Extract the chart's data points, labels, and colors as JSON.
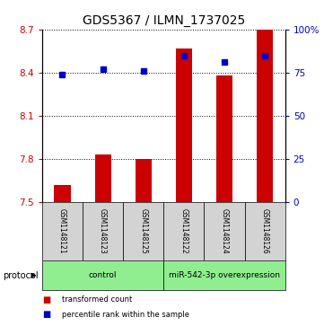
{
  "title": "GDS5367 / ILMN_1737025",
  "samples": [
    "GSM1148121",
    "GSM1148123",
    "GSM1148125",
    "GSM1148122",
    "GSM1148124",
    "GSM1148126"
  ],
  "bar_values": [
    7.62,
    7.83,
    7.8,
    8.57,
    8.38,
    8.7
  ],
  "bar_bottom": 7.5,
  "percentile_values": [
    74,
    77,
    76,
    85,
    81,
    85
  ],
  "ylim_left": [
    7.5,
    8.7
  ],
  "ylim_right": [
    0,
    100
  ],
  "yticks_left": [
    7.5,
    7.8,
    8.1,
    8.4,
    8.7
  ],
  "ytick_labels_left": [
    "7.5",
    "7.8",
    "8.1",
    "8.4",
    "8.7"
  ],
  "yticks_right": [
    0,
    25,
    50,
    75,
    100
  ],
  "ytick_labels_right": [
    "0",
    "25",
    "50",
    "75",
    "100%"
  ],
  "bar_color": "#cc0000",
  "percentile_color": "#0000cc",
  "group_labels": [
    "control",
    "miR-542-3p overexpression"
  ],
  "group_starts": [
    0,
    3
  ],
  "group_ends": [
    2,
    5
  ],
  "group_color": "#90ee90",
  "sample_box_color": "#d3d3d3",
  "protocol_label": "protocol",
  "legend_bar_label": "transformed count",
  "legend_pct_label": "percentile rank within the sample",
  "bar_width": 0.4,
  "title_fontsize": 10,
  "tick_fontsize": 7.5,
  "label_fontsize": 6,
  "sample_fontsize": 5.5,
  "group_fontsize": 6.5
}
